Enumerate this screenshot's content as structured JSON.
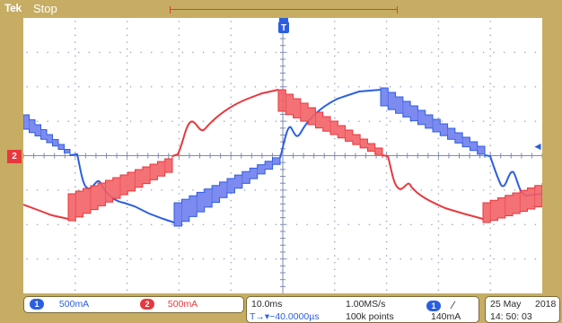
{
  "header": {
    "brand": "Tek",
    "status": "Stop"
  },
  "trigger_marker": "T",
  "channel_marker": "2",
  "trigger_level_arrow": "◄",
  "colors": {
    "bezel": "#c6ad63",
    "ch1": "#2c5fe0",
    "ch1_fill": "#6f7dee",
    "ch2": "#e8383d",
    "ch2_fill": "#f36266",
    "grid": "#9aa6c4"
  },
  "channels": [
    {
      "badge": "1",
      "scale": "500mA",
      "color": "ch1"
    },
    {
      "badge": "2",
      "scale": "500mA",
      "color": "ch2"
    }
  ],
  "timebase": {
    "horizontal": "10.0ms",
    "sample_rate": "1.00MS/s",
    "trigger_position": "T→▾−40.0000µs",
    "record_length": "100k points"
  },
  "trigger": {
    "source": "1",
    "slope_icon": "slope-rising-icon",
    "slope_glyph": "∕",
    "level": "140mA"
  },
  "datetime": {
    "date": "25 May",
    "year": "2018",
    "time": "14: 50: 03"
  }
}
